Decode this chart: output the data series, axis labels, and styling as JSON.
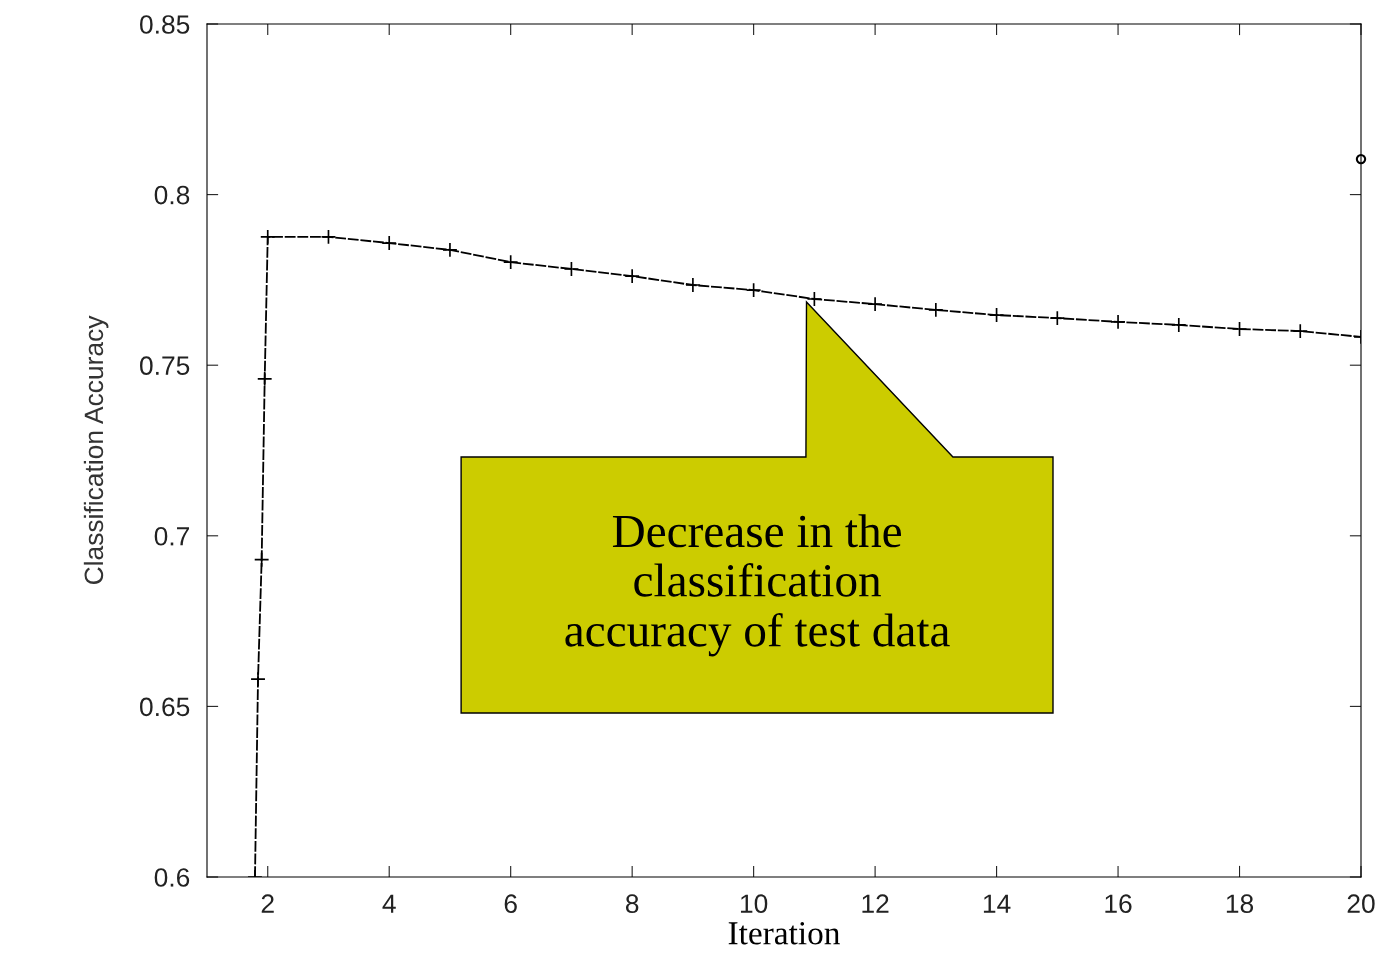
{
  "chart_data": {
    "type": "line",
    "xlabel": "Iteration",
    "ylabel": "Classification Accuracy",
    "xlim": [
      1,
      20
    ],
    "ylim": [
      0.6,
      0.85
    ],
    "xticks": [
      2,
      4,
      6,
      8,
      10,
      12,
      14,
      16,
      18,
      20
    ],
    "yticks": [
      0.6,
      0.65,
      0.7,
      0.75,
      0.8,
      0.85
    ],
    "grid": false,
    "legend": false,
    "marker": "cross",
    "line_style": "dashed",
    "series": [
      {
        "color": "#000000",
        "x": [
          1.79,
          1.84,
          1.9,
          1.95,
          2,
          3,
          4,
          5,
          6,
          7,
          8,
          9,
          10,
          11,
          12,
          13,
          14,
          15,
          16,
          17,
          18,
          19,
          20
        ],
        "values": [
          0.6,
          0.658,
          0.693,
          0.746,
          0.7876,
          0.7876,
          0.7858,
          0.7838,
          0.7802,
          0.7782,
          0.7761,
          0.7735,
          0.772,
          0.7694,
          0.7679,
          0.7662,
          0.7647,
          0.7638,
          0.7627,
          0.7618,
          0.7606,
          0.76,
          0.7583
        ]
      },
      {
        "type": "scatter",
        "marker": "circle",
        "color": "#000000",
        "x": [
          20
        ],
        "values": [
          0.8104
        ]
      }
    ],
    "annotations": [
      "Decrease in the\nclassification\naccuracy of test data"
    ]
  }
}
